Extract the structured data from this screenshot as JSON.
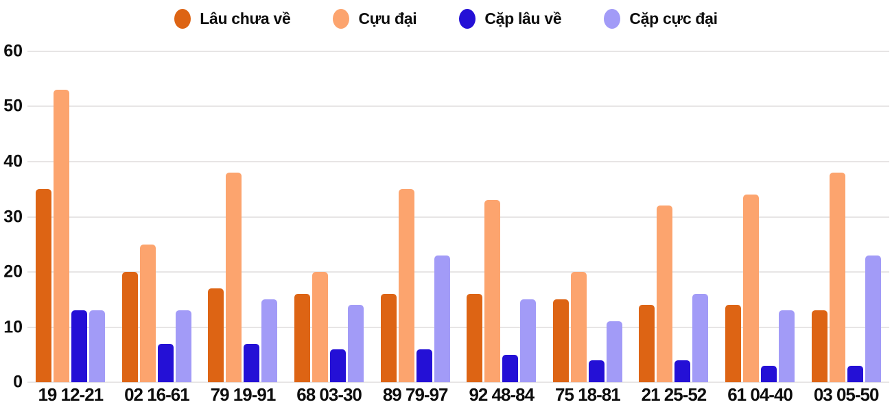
{
  "chart_data": {
    "type": "bar",
    "title": "",
    "xlabel": "",
    "ylabel": "",
    "ylim": [
      0,
      60
    ],
    "yticks": [
      0,
      10,
      20,
      30,
      40,
      50,
      60
    ],
    "grid": true,
    "legend_position": "top",
    "gridline_color": "#e7e5e5",
    "text_color": "#0d0d0d",
    "categories": [
      "19 12-21",
      "02 16-61",
      "79 19-91",
      "68 03-30",
      "89 79-97",
      "92 48-84",
      "75 18-81",
      "21 25-52",
      "61 04-40",
      "03 05-50"
    ],
    "series": [
      {
        "name": "Lâu chưa về",
        "color": "#dd6414",
        "values": [
          35,
          20,
          17,
          16,
          16,
          16,
          15,
          14,
          14,
          13
        ]
      },
      {
        "name": "Cựu đại",
        "color": "#fca46e",
        "values": [
          53,
          25,
          38,
          20,
          35,
          33,
          20,
          32,
          34,
          38
        ]
      },
      {
        "name": "Cặp lâu về",
        "color": "#2410d6",
        "values": [
          13,
          7,
          7,
          6,
          6,
          5,
          4,
          4,
          3,
          3
        ]
      },
      {
        "name": "Cặp cực đại",
        "color": "#a29bf7",
        "values": [
          13,
          13,
          15,
          14,
          23,
          15,
          11,
          16,
          13,
          23
        ]
      }
    ]
  }
}
